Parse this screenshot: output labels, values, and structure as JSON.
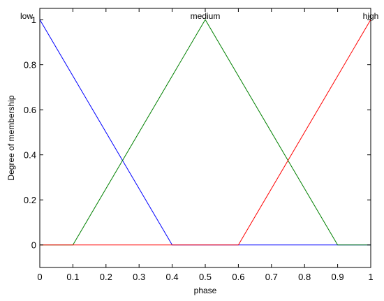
{
  "chart_data": {
    "type": "line",
    "title": "",
    "xlabel": "phase",
    "ylabel": "Degree of membership",
    "xlim": [
      0,
      1
    ],
    "ylim": [
      -0.1,
      1.05
    ],
    "x_ticks": [
      "0",
      "0.1",
      "0.2",
      "0.3",
      "0.4",
      "0.5",
      "0.6",
      "0.7",
      "0.8",
      "0.9",
      "1"
    ],
    "y_ticks": [
      "0",
      "0.2",
      "0.4",
      "0.6",
      "0.8",
      "1"
    ],
    "grid": false,
    "legend": "none",
    "series": [
      {
        "name": "low",
        "color": "#0000ff",
        "x": [
          0,
          0.4,
          1
        ],
        "y": [
          1,
          0,
          0
        ]
      },
      {
        "name": "medium",
        "color": "#008000",
        "x": [
          0,
          0.1,
          0.5,
          0.9,
          1
        ],
        "y": [
          0,
          0,
          1,
          0,
          0
        ]
      },
      {
        "name": "high",
        "color": "#ff0000",
        "x": [
          0,
          0.6,
          1
        ],
        "y": [
          0,
          0,
          1
        ]
      }
    ]
  }
}
